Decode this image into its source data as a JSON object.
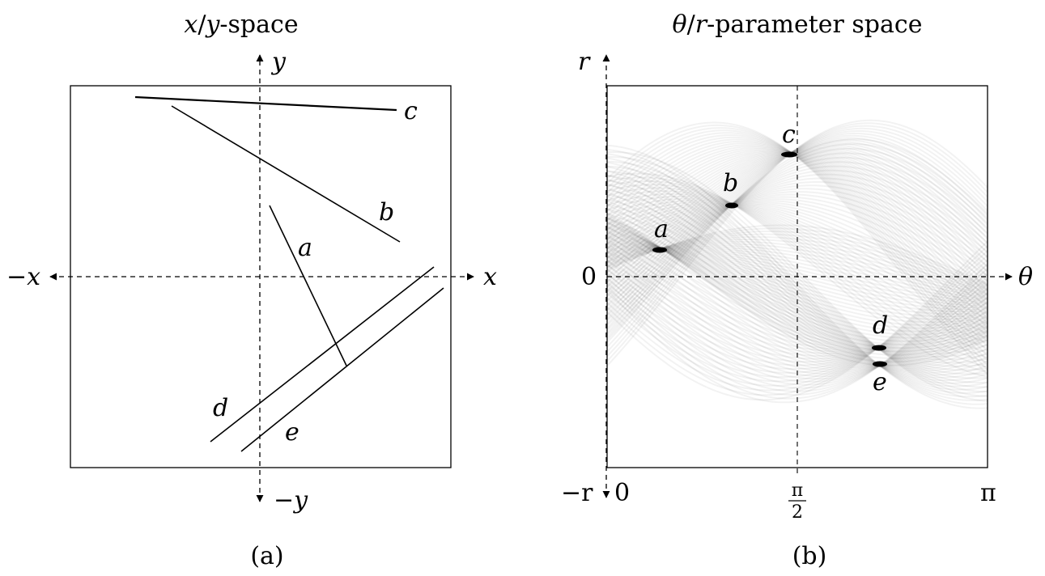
{
  "left_panel": {
    "title_part1": "x",
    "title_part2": "/",
    "title_part3": "y",
    "title_part4": "-space",
    "axis_pos_x": "x",
    "axis_neg_x": "−x",
    "axis_pos_y": "y",
    "axis_neg_y": "−y",
    "line_labels": {
      "a": "a",
      "b": "b",
      "c": "c",
      "d": "d",
      "e": "e"
    },
    "caption": "(a)"
  },
  "right_panel": {
    "title_part1": "θ",
    "title_part2": "/",
    "title_part3": "r",
    "title_part4": "-parameter space",
    "axis_r": "r",
    "axis_neg_r": "−r",
    "axis_theta": "θ",
    "tick_zero_r": "0",
    "tick_zero_theta": "0",
    "tick_pi_half_num": "π",
    "tick_pi_half_den": "2",
    "tick_pi": "π",
    "peak_labels": {
      "a": "a",
      "b": "b",
      "c": "c",
      "d": "d",
      "e": "e"
    },
    "caption": "(b)"
  },
  "colors": {
    "line": "#000000",
    "band": "#000000",
    "background": "#ffffff"
  }
}
